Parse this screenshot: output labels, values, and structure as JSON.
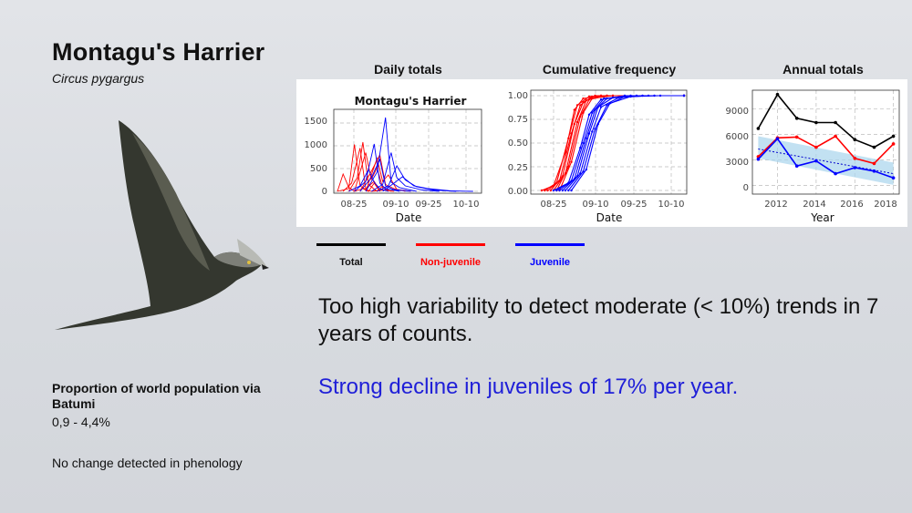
{
  "slide": {
    "title": "Montagu's Harrier",
    "subtitle": "Circus pygargus",
    "proportion_label": "Proportion of world population via Batumi",
    "proportion_value": "0,9 - 4,4%",
    "phenology_note": "No change detected in phenology",
    "statement_main": "Too high variability to detect moderate (< 10%) trends in 7 years of counts.",
    "statement_highlight": "Strong decline in juveniles of 17% per year.",
    "highlight_color": "#1f1fd8"
  },
  "legend": [
    {
      "label": "Total",
      "color": "#000000"
    },
    {
      "label": "Non-juvenile",
      "color": "#ff0000"
    },
    {
      "label": "Juvenile",
      "color": "#0000ff"
    }
  ],
  "chart_data": [
    {
      "panel_title": "Daily totals",
      "title": "Montagu's Harrier",
      "type": "line",
      "xlabel": "Date",
      "ylabel": "",
      "xtick_labels": [
        "08-25",
        "09-10",
        "09-25",
        "10-10"
      ],
      "ytick_labels": [
        "0",
        "500",
        "1000",
        "1500"
      ],
      "ylim": [
        0,
        1800
      ],
      "grid": true,
      "series": [
        {
          "color": "#ff0000",
          "points": [
            [
              0,
              0
            ],
            [
              2,
              380
            ],
            [
              4,
              90
            ],
            [
              6,
              0
            ],
            [
              9,
              60
            ],
            [
              11,
              0
            ],
            [
              13,
              180
            ],
            [
              15,
              0
            ]
          ]
        },
        {
          "color": "#ff0000",
          "points": [
            [
              0,
              0
            ],
            [
              4,
              60
            ],
            [
              6,
              1030
            ],
            [
              8,
              120
            ],
            [
              10,
              40
            ],
            [
              12,
              0
            ],
            [
              16,
              30
            ],
            [
              20,
              0
            ]
          ]
        },
        {
          "color": "#ff0000",
          "points": [
            [
              2,
              0
            ],
            [
              5,
              180
            ],
            [
              8,
              950
            ],
            [
              10,
              60
            ],
            [
              13,
              220
            ],
            [
              15,
              0
            ]
          ]
        },
        {
          "color": "#ff0000",
          "points": [
            [
              4,
              0
            ],
            [
              7,
              300
            ],
            [
              9,
              1080
            ],
            [
              11,
              150
            ],
            [
              14,
              0
            ],
            [
              16,
              120
            ],
            [
              18,
              0
            ]
          ]
        },
        {
          "color": "#ff0000",
          "points": [
            [
              6,
              0
            ],
            [
              10,
              850
            ],
            [
              12,
              260
            ],
            [
              14,
              520
            ],
            [
              16,
              80
            ],
            [
              19,
              0
            ]
          ]
        },
        {
          "color": "#ff0000",
          "points": [
            [
              8,
              0
            ],
            [
              12,
              440
            ],
            [
              15,
              800
            ],
            [
              17,
              150
            ],
            [
              20,
              60
            ],
            [
              24,
              0
            ]
          ]
        },
        {
          "color": "#ff0000",
          "points": [
            [
              10,
              0
            ],
            [
              14,
              720
            ],
            [
              16,
              220
            ],
            [
              18,
              360
            ],
            [
              21,
              40
            ],
            [
              26,
              0
            ]
          ]
        },
        {
          "color": "#0000ff",
          "points": [
            [
              4,
              0
            ],
            [
              8,
              120
            ],
            [
              11,
              480
            ],
            [
              13,
              200
            ],
            [
              15,
              60
            ],
            [
              18,
              0
            ]
          ]
        },
        {
          "color": "#0000ff",
          "points": [
            [
              6,
              0
            ],
            [
              10,
              220
            ],
            [
              13,
              1040
            ],
            [
              15,
              180
            ],
            [
              17,
              60
            ],
            [
              22,
              0
            ]
          ]
        },
        {
          "color": "#0000ff",
          "points": [
            [
              8,
              0
            ],
            [
              12,
              300
            ],
            [
              15,
              700
            ],
            [
              17,
              120
            ],
            [
              20,
              40
            ],
            [
              26,
              0
            ]
          ]
        },
        {
          "color": "#0000ff",
          "points": [
            [
              10,
              0
            ],
            [
              14,
              420
            ],
            [
              17,
              1620
            ],
            [
              18,
              900
            ],
            [
              19,
              200
            ],
            [
              22,
              80
            ],
            [
              28,
              0
            ]
          ]
        },
        {
          "color": "#0000ff",
          "points": [
            [
              12,
              0
            ],
            [
              16,
              150
            ],
            [
              19,
              850
            ],
            [
              21,
              300
            ],
            [
              24,
              120
            ],
            [
              30,
              30
            ],
            [
              36,
              0
            ]
          ]
        },
        {
          "color": "#0000ff",
          "points": [
            [
              14,
              0
            ],
            [
              18,
              120
            ],
            [
              21,
              560
            ],
            [
              24,
              250
            ],
            [
              28,
              100
            ],
            [
              34,
              30
            ],
            [
              42,
              0
            ]
          ]
        },
        {
          "color": "#0000ff",
          "points": [
            [
              16,
              0
            ],
            [
              20,
              180
            ],
            [
              23,
              320
            ],
            [
              27,
              120
            ],
            [
              32,
              60
            ],
            [
              40,
              10
            ],
            [
              48,
              0
            ]
          ]
        }
      ]
    },
    {
      "panel_title": "Cumulative frequency",
      "type": "line",
      "xlabel": "Date",
      "ylabel": "",
      "xtick_labels": [
        "08-25",
        "09-10",
        "09-25",
        "10-10"
      ],
      "ytick_labels": [
        "0.00",
        "0.25",
        "0.50",
        "0.75",
        "1.00"
      ],
      "ylim": [
        0,
        1.05
      ],
      "grid": true,
      "series": [
        {
          "color": "#ff0000",
          "points": [
            [
              0,
              0
            ],
            [
              4,
              0.05
            ],
            [
              8,
              0.4
            ],
            [
              11,
              0.85
            ],
            [
              14,
              0.97
            ],
            [
              20,
              1
            ],
            [
              48,
              1
            ]
          ]
        },
        {
          "color": "#ff0000",
          "points": [
            [
              1,
              0
            ],
            [
              5,
              0.08
            ],
            [
              9,
              0.55
            ],
            [
              12,
              0.9
            ],
            [
              16,
              0.99
            ],
            [
              22,
              1
            ],
            [
              48,
              1
            ]
          ]
        },
        {
          "color": "#ff0000",
          "points": [
            [
              2,
              0
            ],
            [
              6,
              0.1
            ],
            [
              10,
              0.6
            ],
            [
              13,
              0.9
            ],
            [
              17,
              0.99
            ],
            [
              24,
              1
            ],
            [
              48,
              1
            ]
          ]
        },
        {
          "color": "#ff0000",
          "points": [
            [
              3,
              0
            ],
            [
              7,
              0.15
            ],
            [
              11,
              0.7
            ],
            [
              14,
              0.93
            ],
            [
              18,
              1
            ],
            [
              48,
              1
            ]
          ]
        },
        {
          "color": "#ff0000",
          "points": [
            [
              4,
              0
            ],
            [
              8,
              0.18
            ],
            [
              12,
              0.72
            ],
            [
              15,
              0.95
            ],
            [
              20,
              1
            ],
            [
              48,
              1
            ]
          ]
        },
        {
          "color": "#ff0000",
          "points": [
            [
              5,
              0
            ],
            [
              9,
              0.25
            ],
            [
              13,
              0.78
            ],
            [
              16,
              0.96
            ],
            [
              22,
              1
            ],
            [
              48,
              1
            ]
          ]
        },
        {
          "color": "#ff0000",
          "points": [
            [
              6,
              0
            ],
            [
              10,
              0.3
            ],
            [
              14,
              0.82
            ],
            [
              17,
              0.97
            ],
            [
              24,
              1
            ],
            [
              48,
              1
            ]
          ]
        },
        {
          "color": "#0000ff",
          "points": [
            [
              4,
              0
            ],
            [
              9,
              0.08
            ],
            [
              13,
              0.45
            ],
            [
              16,
              0.8
            ],
            [
              20,
              0.96
            ],
            [
              28,
              1
            ],
            [
              48,
              1
            ]
          ]
        },
        {
          "color": "#0000ff",
          "points": [
            [
              5,
              0
            ],
            [
              10,
              0.1
            ],
            [
              14,
              0.5
            ],
            [
              17,
              0.82
            ],
            [
              21,
              0.97
            ],
            [
              30,
              1
            ],
            [
              48,
              1
            ]
          ]
        },
        {
          "color": "#0000ff",
          "points": [
            [
              6,
              0
            ],
            [
              11,
              0.12
            ],
            [
              15,
              0.55
            ],
            [
              18,
              0.85
            ],
            [
              22,
              0.97
            ],
            [
              32,
              1
            ],
            [
              48,
              1
            ]
          ]
        },
        {
          "color": "#0000ff",
          "points": [
            [
              7,
              0
            ],
            [
              12,
              0.15
            ],
            [
              16,
              0.6
            ],
            [
              19,
              0.88
            ],
            [
              24,
              0.98
            ],
            [
              34,
              1
            ],
            [
              48,
              1
            ]
          ]
        },
        {
          "color": "#0000ff",
          "points": [
            [
              8,
              0
            ],
            [
              13,
              0.18
            ],
            [
              17,
              0.62
            ],
            [
              20,
              0.88
            ],
            [
              26,
              0.98
            ],
            [
              36,
              1
            ],
            [
              48,
              1
            ]
          ]
        },
        {
          "color": "#0000ff",
          "points": [
            [
              9,
              0
            ],
            [
              14,
              0.2
            ],
            [
              18,
              0.65
            ],
            [
              22,
              0.9
            ],
            [
              28,
              0.99
            ],
            [
              38,
              1
            ],
            [
              48,
              1
            ]
          ]
        },
        {
          "color": "#0000ff",
          "points": [
            [
              10,
              0
            ],
            [
              15,
              0.22
            ],
            [
              19,
              0.7
            ],
            [
              23,
              0.92
            ],
            [
              30,
              0.99
            ],
            [
              40,
              1
            ],
            [
              48,
              1
            ]
          ]
        }
      ]
    },
    {
      "panel_title": "Annual totals",
      "type": "line",
      "xlabel": "Year",
      "ylabel": "",
      "xtick_labels": [
        "2012",
        "2014",
        "2016",
        "2018"
      ],
      "ytick_labels": [
        "0",
        "3000",
        "6000",
        "9000"
      ],
      "xlim": [
        2010.7,
        2018.3
      ],
      "ylim": [
        -1000,
        11200
      ],
      "grid": true,
      "trend_band": {
        "x": [
          2011,
          2018
        ],
        "lower": [
          3200,
          80
        ],
        "upper": [
          5800,
          2700
        ]
      },
      "trend_line": {
        "x": [
          2011,
          2018
        ],
        "y": [
          4300,
          1400
        ]
      },
      "series": [
        {
          "name": "Total",
          "color": "#000000",
          "x": [
            2011,
            2012,
            2013,
            2014,
            2015,
            2016,
            2017,
            2018
          ],
          "y": [
            6700,
            10700,
            7900,
            7400,
            7400,
            5400,
            4500,
            5800
          ]
        },
        {
          "name": "Non-juvenile",
          "color": "#ff0000",
          "x": [
            2011,
            2012,
            2013,
            2014,
            2015,
            2016,
            2017,
            2018
          ],
          "y": [
            3400,
            5600,
            5700,
            4500,
            5800,
            3200,
            2600,
            4900
          ]
        },
        {
          "name": "Juvenile",
          "color": "#0000ff",
          "x": [
            2011,
            2012,
            2013,
            2014,
            2015,
            2016,
            2017,
            2018
          ],
          "y": [
            3100,
            5500,
            2300,
            2900,
            1400,
            2100,
            1700,
            900
          ]
        }
      ]
    }
  ]
}
